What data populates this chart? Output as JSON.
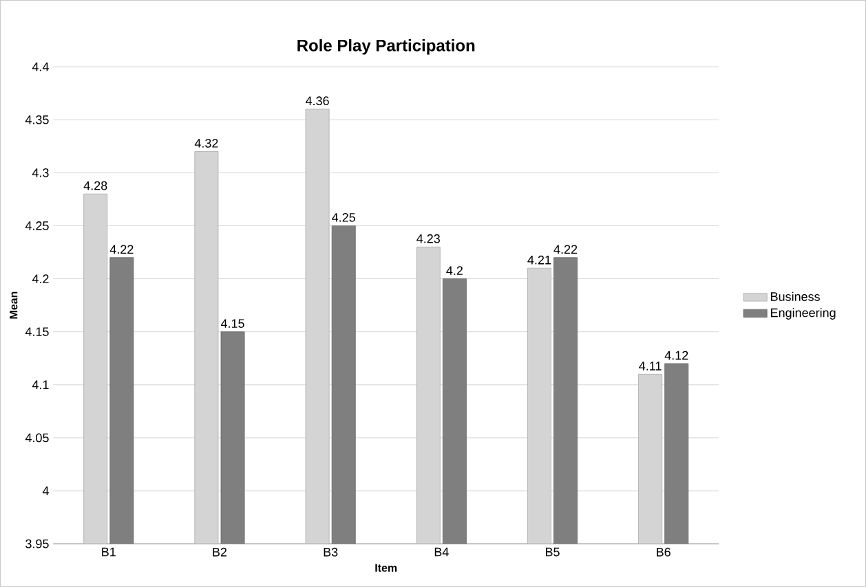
{
  "chart_data": {
    "type": "bar",
    "title": "Role Play Participation",
    "xlabel": "Item",
    "ylabel": "Mean",
    "categories": [
      "B1",
      "B2",
      "B3",
      "B4",
      "B5",
      "B6"
    ],
    "series": [
      {
        "name": "Business",
        "color": "#d4d4d4",
        "values": [
          4.28,
          4.32,
          4.36,
          4.23,
          4.21,
          4.11
        ]
      },
      {
        "name": "Engineering",
        "color": "#7f7f7f",
        "values": [
          4.22,
          4.15,
          4.25,
          4.2,
          4.22,
          4.12
        ]
      }
    ],
    "ylim": [
      3.95,
      4.4
    ],
    "yticks": [
      3.95,
      4,
      4.05,
      4.1,
      4.15,
      4.2,
      4.25,
      4.3,
      4.35,
      4.4
    ],
    "grid": "y",
    "legend": "right",
    "data_labels": true
  }
}
